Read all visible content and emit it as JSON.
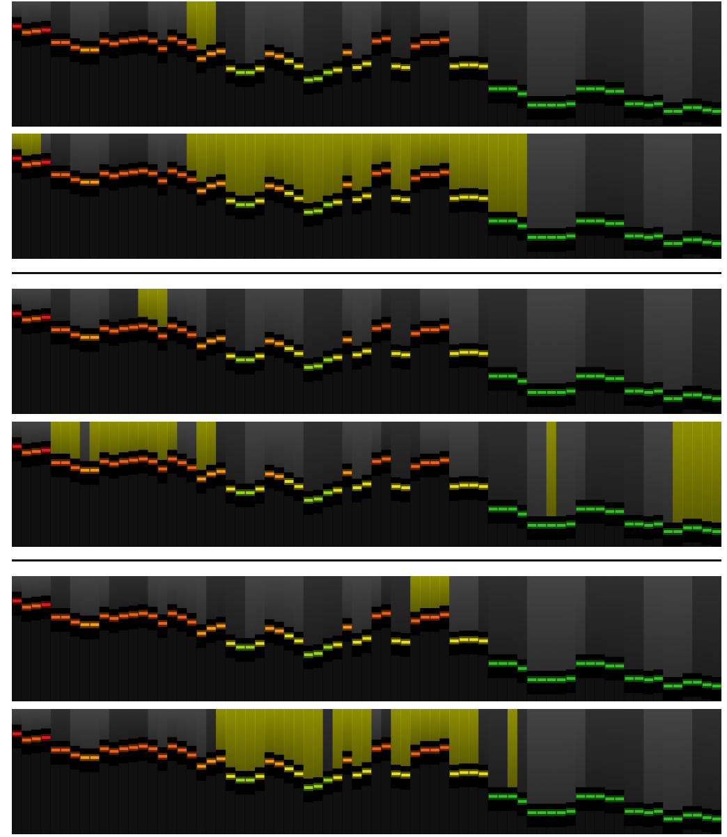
{
  "colors": {
    "background": "#ffffff",
    "panel_background": "#0c0c0c",
    "column_light": "#444444",
    "column_dark": "#2e2e2e",
    "highlight": "#b5b500",
    "divider": "#111111",
    "band_red": "#e01818",
    "band_orange": "#f06010",
    "band_amber": "#ff9a10",
    "band_yellow": "#e8e010",
    "band_lime": "#98d810",
    "band_green": "#30c020"
  },
  "strip": {
    "columns": 73,
    "values": [
      0.73,
      0.68,
      0.69,
      0.7,
      0.6,
      0.6,
      0.56,
      0.54,
      0.54,
      0.61,
      0.59,
      0.61,
      0.62,
      0.63,
      0.61,
      0.55,
      0.63,
      0.6,
      0.56,
      0.47,
      0.51,
      0.53,
      0.39,
      0.36,
      0.36,
      0.39,
      0.51,
      0.49,
      0.45,
      0.41,
      0.3,
      0.31,
      0.36,
      0.38,
      0.52,
      0.4,
      0.43,
      0.61,
      0.63,
      0.41,
      0.4,
      0.57,
      0.6,
      0.6,
      0.62,
      0.41,
      0.42,
      0.42,
      0.41,
      0.23,
      0.23,
      0.23,
      0.19,
      0.1,
      0.1,
      0.1,
      0.1,
      0.11,
      0.23,
      0.23,
      0.23,
      0.21,
      0.21,
      0.11,
      0.11,
      0.1,
      0.11,
      0.05,
      0.05,
      0.08,
      0.08,
      0.06,
      0.05
    ],
    "shade_pattern": [
      1,
      1,
      1,
      1,
      0,
      0,
      1,
      1,
      1,
      1,
      0,
      0,
      0,
      0,
      1,
      1,
      1,
      1,
      1,
      1,
      0,
      0,
      0,
      0,
      1,
      1,
      1,
      1,
      1,
      1,
      0,
      0,
      0,
      0,
      1,
      1,
      1,
      1,
      0,
      0,
      0,
      0,
      1,
      1,
      1,
      1,
      1,
      1,
      0,
      0,
      0,
      0,
      0,
      1,
      1,
      1,
      1,
      1,
      1,
      0,
      0,
      0,
      0,
      0,
      0,
      1,
      1,
      1,
      1,
      1,
      0,
      0,
      0
    ]
  },
  "panels": [
    {
      "highlights": [
        [
          18,
          21
        ]
      ]
    },
    {
      "highlights": [
        [
          0,
          3
        ],
        [
          18,
          21
        ],
        [
          21,
          53
        ]
      ]
    },
    {
      "highlights": [
        [
          13,
          16
        ]
      ]
    },
    {
      "highlights": [
        [
          4,
          7
        ],
        [
          8,
          17
        ],
        [
          19,
          21
        ],
        [
          55,
          56
        ],
        [
          68,
          73
        ]
      ]
    },
    {
      "highlights": [
        [
          41,
          45
        ]
      ]
    },
    {
      "highlights": [
        [
          21,
          32
        ],
        [
          33,
          37
        ],
        [
          39,
          48
        ],
        [
          51,
          52
        ]
      ]
    }
  ]
}
